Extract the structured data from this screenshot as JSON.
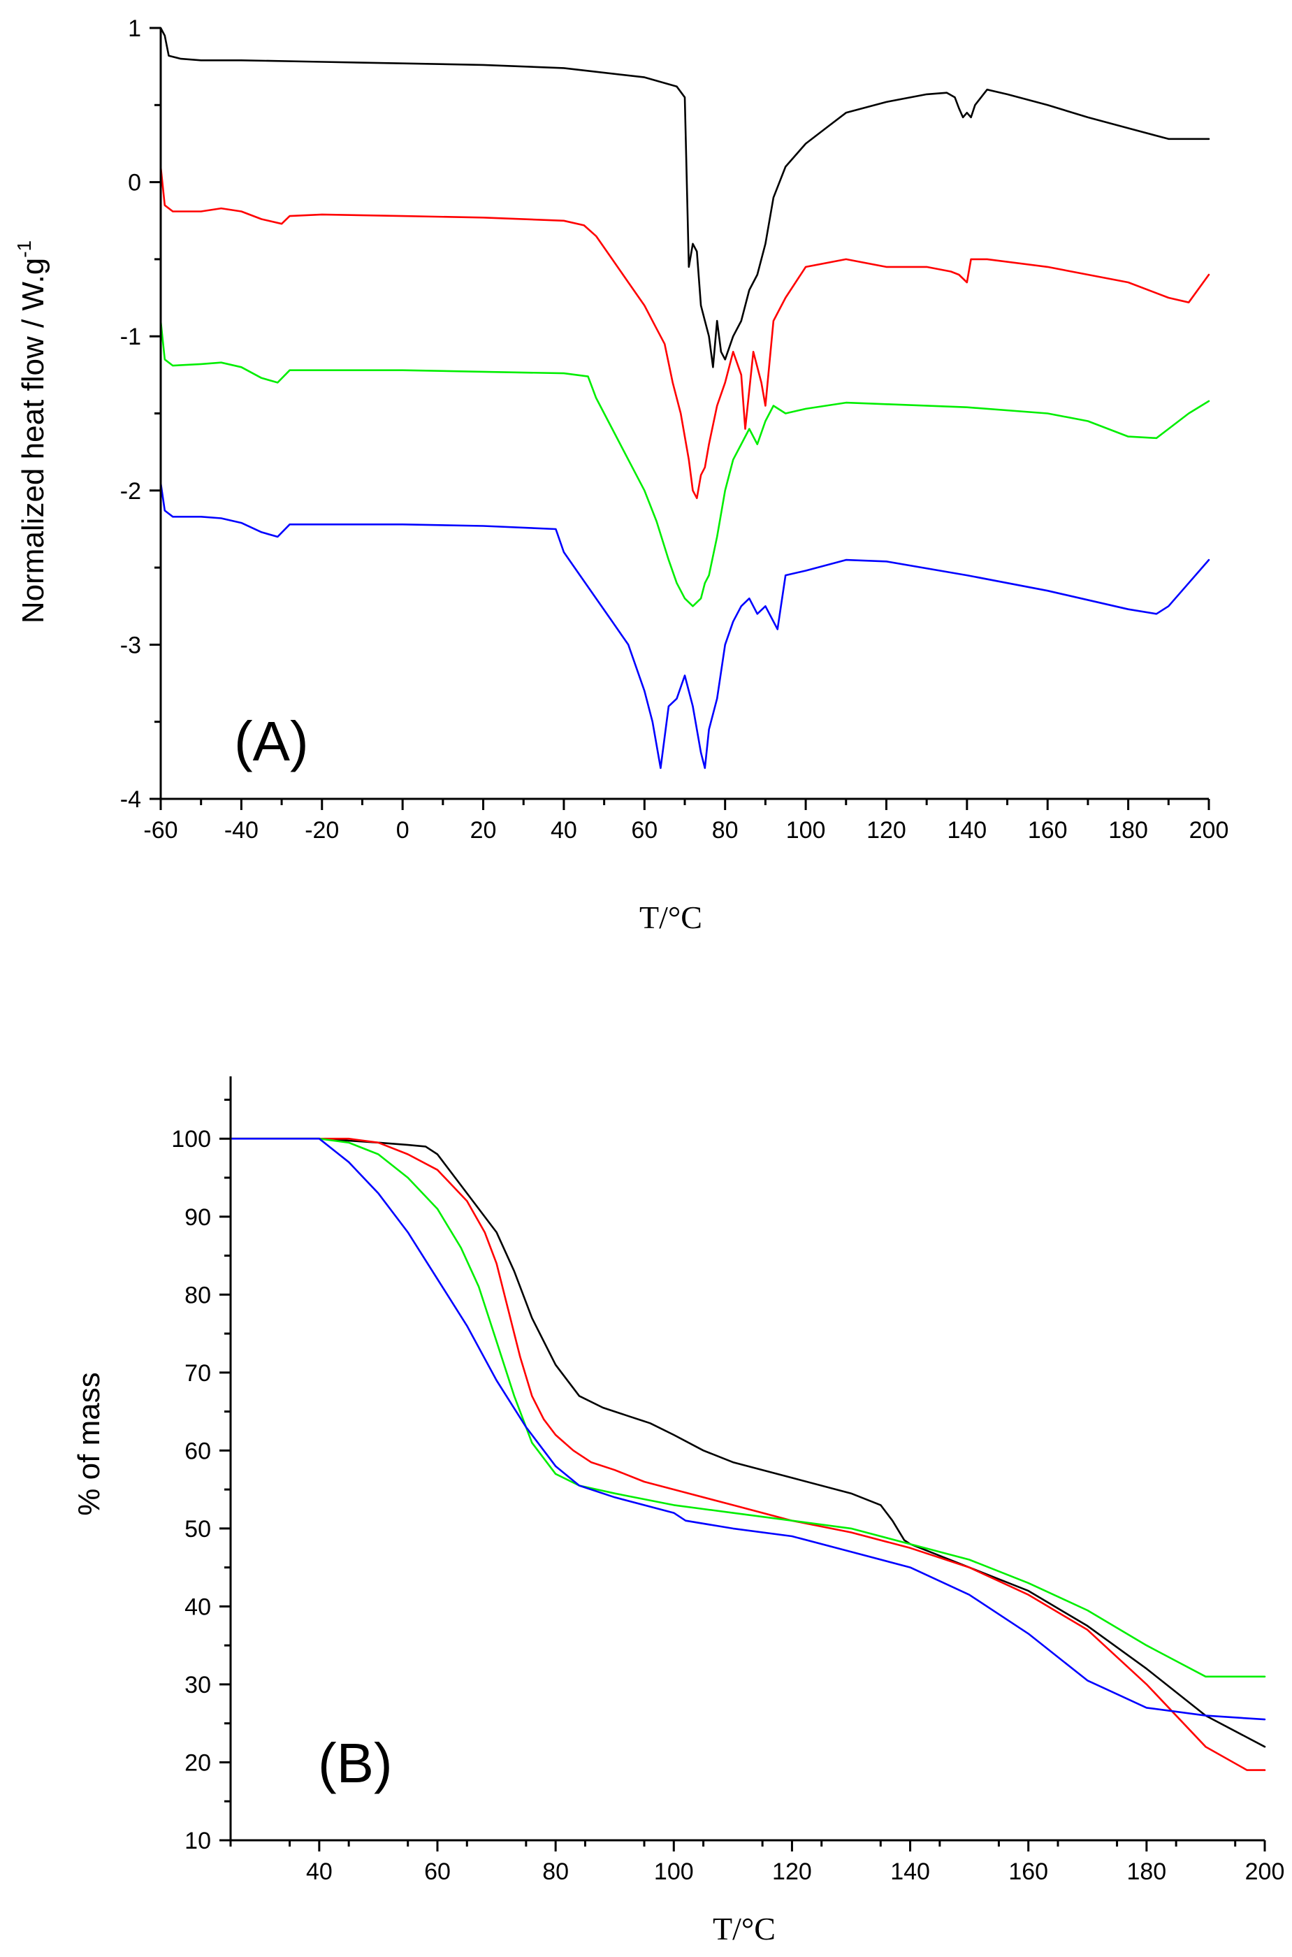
{
  "colors": {
    "black": "#000000",
    "red": "#ff0000",
    "green": "#00ee00",
    "blue": "#0000ff"
  },
  "chart_data": [
    {
      "type": "line",
      "panel_label": "(A)",
      "title": "",
      "xlabel": "T/°C",
      "ylabel": "Normalized heat flow / W.g",
      "ylabel_superscript": "-1",
      "xlim": [
        -60,
        200
      ],
      "ylim": [
        -4,
        1
      ],
      "xticks": [
        -60,
        -40,
        -20,
        0,
        20,
        40,
        60,
        80,
        100,
        120,
        140,
        160,
        180,
        200
      ],
      "xtick_labels": [
        "-60",
        "-40",
        "-20",
        "0",
        "20",
        "40",
        "60",
        "80",
        "100",
        "120",
        "140",
        "160",
        "180",
        "200"
      ],
      "yticks": [
        1,
        0,
        -1,
        -2,
        -3,
        -4
      ],
      "ytick_labels": [
        "1",
        "0",
        "-1",
        "-2",
        "-3",
        "-4"
      ],
      "grid": false,
      "series": [
        {
          "name": "black",
          "color": "black",
          "x": [
            -60,
            -59,
            -58,
            -55,
            -50,
            -40,
            -20,
            0,
            20,
            40,
            60,
            68,
            70,
            71,
            72,
            73,
            74,
            75,
            76,
            77,
            78,
            79,
            80,
            82,
            84,
            86,
            88,
            90,
            92,
            95,
            100,
            105,
            110,
            120,
            130,
            135,
            137,
            138,
            139,
            140,
            141,
            142,
            145,
            150,
            160,
            170,
            180,
            190,
            200
          ],
          "y": [
            1.0,
            0.95,
            0.82,
            0.8,
            0.79,
            0.79,
            0.78,
            0.77,
            0.76,
            0.74,
            0.68,
            0.62,
            0.55,
            -0.55,
            -0.4,
            -0.45,
            -0.8,
            -0.9,
            -1.0,
            -1.2,
            -0.9,
            -1.1,
            -1.15,
            -1.0,
            -0.9,
            -0.7,
            -0.6,
            -0.4,
            -0.1,
            0.1,
            0.25,
            0.35,
            0.45,
            0.52,
            0.57,
            0.58,
            0.55,
            0.48,
            0.42,
            0.45,
            0.42,
            0.5,
            0.6,
            0.57,
            0.5,
            0.42,
            0.35,
            0.28,
            0.28
          ]
        },
        {
          "name": "red",
          "color": "red",
          "x": [
            -60,
            -59,
            -57,
            -50,
            -45,
            -40,
            -35,
            -30,
            -28,
            -20,
            0,
            20,
            40,
            45,
            48,
            52,
            56,
            60,
            63,
            65,
            67,
            69,
            71,
            72,
            73,
            74,
            75,
            76,
            78,
            80,
            82,
            84,
            85,
            87,
            89,
            90,
            92,
            95,
            100,
            110,
            120,
            130,
            136,
            138,
            140,
            141,
            145,
            160,
            180,
            190,
            195,
            200
          ],
          "y": [
            0.1,
            -0.15,
            -0.19,
            -0.19,
            -0.17,
            -0.19,
            -0.24,
            -0.27,
            -0.22,
            -0.21,
            -0.22,
            -0.23,
            -0.25,
            -0.28,
            -0.35,
            -0.5,
            -0.65,
            -0.8,
            -0.95,
            -1.05,
            -1.3,
            -1.5,
            -1.8,
            -2.0,
            -2.05,
            -1.9,
            -1.85,
            -1.7,
            -1.45,
            -1.3,
            -1.1,
            -1.25,
            -1.6,
            -1.1,
            -1.3,
            -1.45,
            -0.9,
            -0.75,
            -0.55,
            -0.5,
            -0.55,
            -0.55,
            -0.58,
            -0.6,
            -0.65,
            -0.5,
            -0.5,
            -0.55,
            -0.65,
            -0.75,
            -0.78,
            -0.6
          ]
        },
        {
          "name": "green",
          "color": "green",
          "x": [
            -60,
            -59,
            -57,
            -50,
            -45,
            -40,
            -35,
            -31,
            -28,
            -20,
            0,
            20,
            40,
            46,
            48,
            52,
            56,
            60,
            63,
            66,
            68,
            70,
            72,
            74,
            75,
            76,
            78,
            80,
            82,
            84,
            86,
            88,
            90,
            92,
            95,
            100,
            110,
            120,
            140,
            160,
            170,
            180,
            187,
            190,
            195,
            200
          ],
          "y": [
            -0.9,
            -1.15,
            -1.19,
            -1.18,
            -1.17,
            -1.2,
            -1.27,
            -1.3,
            -1.22,
            -1.22,
            -1.22,
            -1.23,
            -1.24,
            -1.26,
            -1.4,
            -1.6,
            -1.8,
            -2.0,
            -2.2,
            -2.45,
            -2.6,
            -2.7,
            -2.75,
            -2.7,
            -2.6,
            -2.55,
            -2.3,
            -2.0,
            -1.8,
            -1.7,
            -1.6,
            -1.7,
            -1.55,
            -1.45,
            -1.5,
            -1.47,
            -1.43,
            -1.44,
            -1.46,
            -1.5,
            -1.55,
            -1.65,
            -1.66,
            -1.6,
            -1.5,
            -1.42
          ]
        },
        {
          "name": "blue",
          "color": "blue",
          "x": [
            -60,
            -59,
            -57,
            -50,
            -45,
            -40,
            -35,
            -31,
            -28,
            -20,
            0,
            20,
            38,
            40,
            44,
            48,
            52,
            56,
            60,
            62,
            64,
            66,
            68,
            70,
            72,
            74,
            75,
            76,
            78,
            80,
            82,
            84,
            86,
            88,
            90,
            93,
            95,
            100,
            110,
            120,
            140,
            160,
            180,
            187,
            190,
            195,
            200
          ],
          "y": [
            -1.95,
            -2.13,
            -2.17,
            -2.17,
            -2.18,
            -2.21,
            -2.27,
            -2.3,
            -2.22,
            -2.22,
            -2.22,
            -2.23,
            -2.25,
            -2.4,
            -2.55,
            -2.7,
            -2.85,
            -3.0,
            -3.3,
            -3.5,
            -3.8,
            -3.4,
            -3.35,
            -3.2,
            -3.4,
            -3.7,
            -3.8,
            -3.55,
            -3.35,
            -3.0,
            -2.85,
            -2.75,
            -2.7,
            -2.8,
            -2.75,
            -2.9,
            -2.55,
            -2.52,
            -2.45,
            -2.46,
            -2.55,
            -2.65,
            -2.77,
            -2.8,
            -2.75,
            -2.6,
            -2.45
          ]
        }
      ]
    },
    {
      "type": "line",
      "panel_label": "(B)",
      "title": "",
      "xlabel": "T/°C",
      "ylabel": "% of mass",
      "xlim": [
        25,
        200
      ],
      "ylim": [
        10,
        108
      ],
      "xticks": [
        40,
        60,
        80,
        100,
        120,
        140,
        160,
        180,
        200
      ],
      "xtick_labels": [
        "40",
        "60",
        "80",
        "100",
        "120",
        "140",
        "160",
        "180",
        "200"
      ],
      "yticks": [
        10,
        20,
        30,
        40,
        50,
        60,
        70,
        80,
        90,
        100
      ],
      "ytick_labels": [
        "10",
        "20",
        "30",
        "40",
        "50",
        "60",
        "70",
        "80",
        "90",
        "100"
      ],
      "grid": false,
      "series": [
        {
          "name": "black",
          "color": "black",
          "x": [
            25,
            40,
            50,
            55,
            58,
            60,
            63,
            66,
            70,
            73,
            76,
            80,
            84,
            88,
            92,
            96,
            100,
            105,
            110,
            120,
            130,
            135,
            137,
            139,
            140,
            150,
            160,
            170,
            180,
            190,
            200
          ],
          "y": [
            100,
            100,
            99.5,
            99.2,
            99,
            98,
            95,
            92,
            88,
            83,
            77,
            71,
            67,
            65.5,
            64.5,
            63.5,
            62,
            60,
            58.5,
            56.5,
            54.5,
            53,
            51,
            48.5,
            48,
            45,
            42,
            37.5,
            32,
            26,
            22
          ]
        },
        {
          "name": "red",
          "color": "red",
          "x": [
            25,
            40,
            45,
            50,
            55,
            60,
            65,
            68,
            70,
            72,
            74,
            76,
            78,
            80,
            83,
            86,
            90,
            95,
            100,
            110,
            120,
            130,
            140,
            150,
            160,
            170,
            180,
            190,
            197,
            200
          ],
          "y": [
            100,
            100,
            100,
            99.5,
            98,
            96,
            92,
            88,
            84,
            78,
            72,
            67,
            64,
            62,
            60,
            58.5,
            57.5,
            56,
            55,
            53,
            51,
            49.5,
            47.5,
            45,
            41.5,
            37,
            30,
            22,
            19,
            19
          ]
        },
        {
          "name": "green",
          "color": "green",
          "x": [
            25,
            40,
            45,
            50,
            55,
            60,
            64,
            67,
            70,
            73,
            76,
            80,
            84,
            90,
            100,
            110,
            120,
            130,
            140,
            150,
            160,
            170,
            180,
            185,
            190,
            195,
            200
          ],
          "y": [
            100,
            100,
            99.5,
            98,
            95,
            91,
            86,
            81,
            74,
            67,
            61,
            57,
            55.5,
            54.5,
            53,
            52,
            51,
            50,
            48,
            46,
            43,
            39.5,
            35,
            33,
            31,
            31,
            31
          ]
        },
        {
          "name": "blue",
          "color": "blue",
          "x": [
            25,
            40,
            45,
            50,
            55,
            60,
            65,
            70,
            75,
            80,
            84,
            90,
            100,
            102,
            110,
            120,
            130,
            140,
            150,
            160,
            170,
            180,
            190,
            200
          ],
          "y": [
            100,
            100,
            97,
            93,
            88,
            82,
            76,
            69,
            63,
            58,
            55.5,
            54,
            52,
            51,
            50,
            49,
            47,
            45,
            41.5,
            36.5,
            30.5,
            27,
            26,
            25.5
          ]
        }
      ]
    }
  ]
}
